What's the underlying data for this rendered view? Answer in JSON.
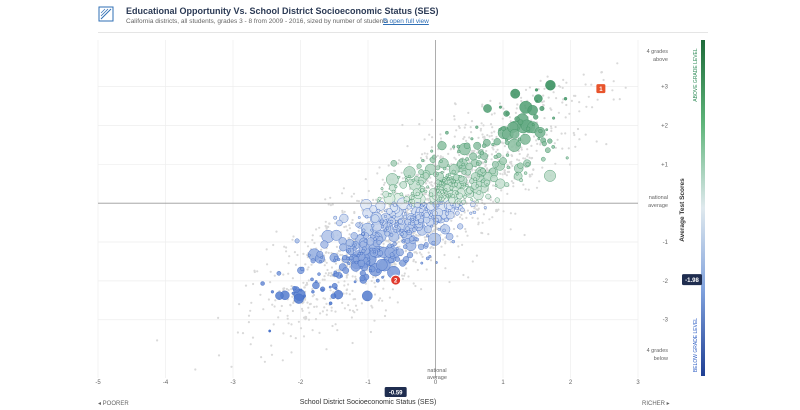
{
  "header": {
    "title": "Educational Opportunity Vs. School District Socioeconomic Status (SES)",
    "subtitle": "California districts, all students, grades 3 - 8 from 2009 - 2016, sized by number of students",
    "open_link": "open full view"
  },
  "footer": {
    "poorer": "◂ POORER",
    "richer": "RICHER ▸"
  },
  "colors": {
    "bg_points": "#d9d9d9",
    "below": "#2f5fc4",
    "above": "#2e8b57",
    "highlight": "#e8542c",
    "accent_dark": "#1f2d4f"
  },
  "chart_data": {
    "type": "scatter",
    "xlabel": "School District Socioeconomic Status (SES)",
    "ylabel": "Average Test Scores",
    "xlim": [
      -5,
      3
    ],
    "ylim": [
      -4.5,
      4.2
    ],
    "xticks": [
      "-5",
      "-4",
      "-3",
      "-2",
      "-1",
      "0",
      "1",
      "2",
      "3"
    ],
    "yticks": [
      "+3",
      "+2",
      "+1",
      "-1",
      "-2",
      "-3"
    ],
    "ytick_values": [
      3,
      2,
      1,
      -1,
      -2,
      -3
    ],
    "x_national_average_label": [
      "national",
      "average"
    ],
    "y_national_average_label": [
      "national",
      "average"
    ],
    "top_label": [
      "4 grades",
      "above"
    ],
    "bottom_label": [
      "4 grades",
      "below"
    ],
    "colorbar_top": "ABOVE GRADE LEVEL",
    "colorbar_bottom": "BELOW GRADE LEVEL",
    "selected_x": "-0.59",
    "selected_y": "-1.98",
    "markers": [
      {
        "label": "1",
        "x": 2.45,
        "y": 2.95
      },
      {
        "label": "2",
        "x": -0.59,
        "y": -1.98
      }
    ]
  }
}
